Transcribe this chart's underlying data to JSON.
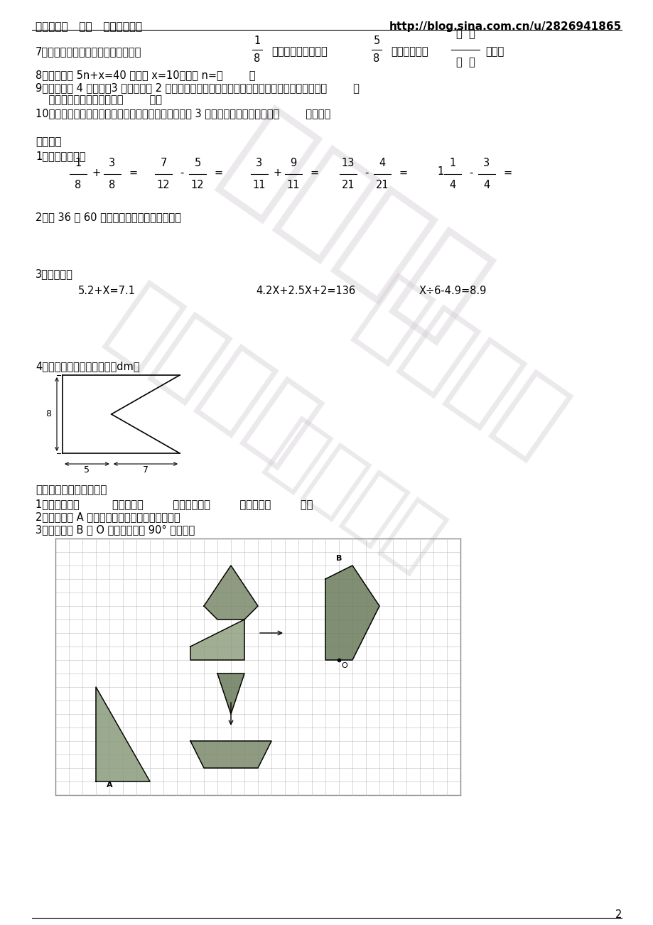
{
  "bg_color": "#ffffff",
  "watermark_color": "#d8d0d8",
  "page_number": "2",
  "header_left": "天叶辅导班   数学   四年级（下）",
  "header_right": "http://blog.sina.com.cn/u/2826941865",
  "q7_pre": "7、小明看一本书，第一天看了全书的",
  "q7_f1n": "1",
  "q7_f1d": "8",
  "q7_mid": "，第二天看了全书的",
  "q7_f2n": "5",
  "q7_f2d": "8",
  "q7_end": "，还有全书的",
  "q7_tail": "没看。",
  "q8": "8、已知方程 5n+x=40 的解是 x=10，那么 n=（        ）",
  "q9a": "9、盒子里装 4 个红球，3 个黄球，和 2 个绿球（球除颜色外其它都相同），任意摸一个球，摸到（        ）",
  "q9b": "    的可能性最小，可能性是（        ）。",
  "q10": "10、一个平底锅，每次最多只能烙两张饼，烙一面需要 3 分钟，烙三张饼至少需要（        ）分钟。",
  "s3_title": "三、计算",
  "s3_q1": "1、直接写得数：",
  "s3_q2": "2、求 36 和 60 的最大公因数和最小公倍数。",
  "s3_q3": "3、解方程：",
  "eq1": "5.2+X=7.1",
  "eq2": "4.2X+2.5X+2=136",
  "eq3": "X÷6-4.9=8.9",
  "s3_q4": "4、求下面图形面积（单位：dm）",
  "s4_title": "四、按要求填一填画一画",
  "s4_q1": "1、小船先向（          ）平移了（         ）格，再向（         ）平移了（         ）格",
  "s4_q2": "2、画出图形 A 的另一半，使它成为轴对称图形。",
  "s4_q3": "3、画出图形 B 绕 O 点顺时针旋转 90° 的图形。"
}
